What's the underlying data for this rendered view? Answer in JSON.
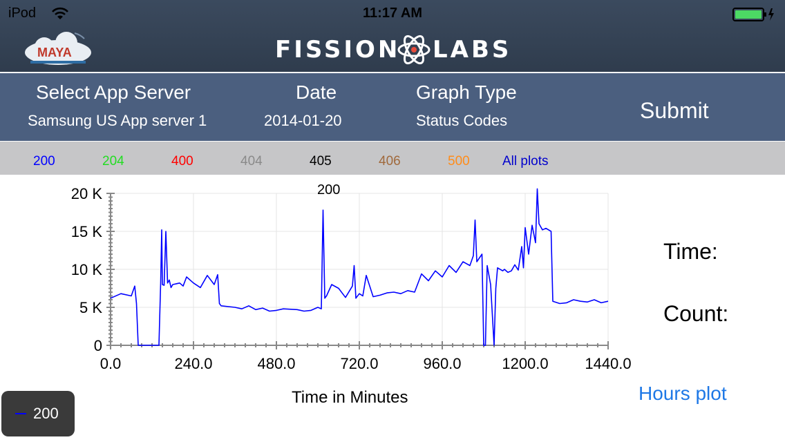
{
  "status_bar": {
    "carrier": "iPod",
    "time": "11:17 AM"
  },
  "header": {
    "brand_left": "FISSION",
    "brand_right": "LABS",
    "partner_logo": "MAYA"
  },
  "form": {
    "server_label": "Select App Server",
    "server_value": "Samsung US App server 1",
    "date_label": "Date",
    "date_value": "2014-01-20",
    "graph_label": "Graph Type",
    "graph_value": "Status Codes",
    "submit_label": "Submit"
  },
  "status_codes": [
    {
      "label": "200",
      "color": "#0000ff"
    },
    {
      "label": "204",
      "color": "#22dd22"
    },
    {
      "label": "400",
      "color": "#ff0000"
    },
    {
      "label": "404",
      "color": "#8a8a8a"
    },
    {
      "label": "405",
      "color": "#000000"
    },
    {
      "label": "406",
      "color": "#a0693c"
    },
    {
      "label": "500",
      "color": "#ff8c1a"
    },
    {
      "label": "All plots",
      "color": "#0000cc"
    }
  ],
  "side": {
    "time_label": "Time:",
    "count_label": "Count:",
    "hours_plot_label": "Hours plot"
  },
  "chart_data": {
    "type": "line",
    "title": "200",
    "xlabel": "Time in Minutes",
    "ylabel": "",
    "xlim": [
      0,
      1440
    ],
    "ylim": [
      0,
      20000
    ],
    "x_ticks": [
      "0.0",
      "240.0",
      "480.0",
      "720.0",
      "960.0",
      "1200.0",
      "1440.0"
    ],
    "y_ticks": [
      "0",
      "5 K",
      "10 K",
      "15 K",
      "20 K"
    ],
    "grid": true,
    "legend": "bottom-left",
    "series": [
      {
        "name": "200",
        "color": "#0000ff",
        "x": [
          0,
          30,
          60,
          70,
          75,
          80,
          140,
          145,
          148,
          150,
          155,
          160,
          165,
          170,
          175,
          180,
          200,
          210,
          220,
          240,
          260,
          280,
          300,
          310,
          315,
          320,
          360,
          380,
          400,
          420,
          440,
          460,
          480,
          500,
          540,
          560,
          580,
          600,
          610,
          615,
          620,
          625,
          630,
          640,
          660,
          680,
          700,
          705,
          710,
          720,
          730,
          740,
          760,
          780,
          800,
          820,
          840,
          860,
          880,
          900,
          920,
          940,
          960,
          980,
          1000,
          1020,
          1040,
          1050,
          1055,
          1060,
          1075,
          1080,
          1085,
          1090,
          1100,
          1110,
          1115,
          1120,
          1135,
          1140,
          1150,
          1160,
          1170,
          1180,
          1190,
          1195,
          1200,
          1210,
          1220,
          1230,
          1235,
          1240,
          1250,
          1260,
          1275,
          1280,
          1300,
          1320,
          1340,
          1360,
          1380,
          1400,
          1420,
          1440
        ],
        "y": [
          6200,
          6800,
          6500,
          7800,
          5500,
          0,
          0,
          8200,
          15200,
          8000,
          7900,
          15000,
          8200,
          8600,
          7600,
          8000,
          8200,
          7800,
          9000,
          8200,
          7600,
          9200,
          8000,
          9300,
          5500,
          5200,
          5000,
          4800,
          5200,
          4700,
          4900,
          4500,
          4600,
          4800,
          4700,
          4500,
          4600,
          5000,
          4800,
          17800,
          6200,
          6500,
          7000,
          8000,
          7500,
          6300,
          7800,
          10500,
          6200,
          6800,
          6500,
          9200,
          6400,
          6600,
          6900,
          7000,
          6800,
          7200,
          7000,
          9400,
          8500,
          9800,
          9000,
          10500,
          9600,
          11000,
          10500,
          11800,
          16500,
          11000,
          12000,
          0,
          0,
          10500,
          8000,
          0,
          7500,
          10200,
          9800,
          10000,
          9600,
          9800,
          10600,
          9900,
          13000,
          10200,
          15500,
          12000,
          15800,
          13500,
          20600,
          16000,
          15200,
          15400,
          15000,
          5800,
          5500,
          5600,
          6000,
          5800,
          5700,
          6000,
          5600,
          5800
        ]
      }
    ]
  }
}
